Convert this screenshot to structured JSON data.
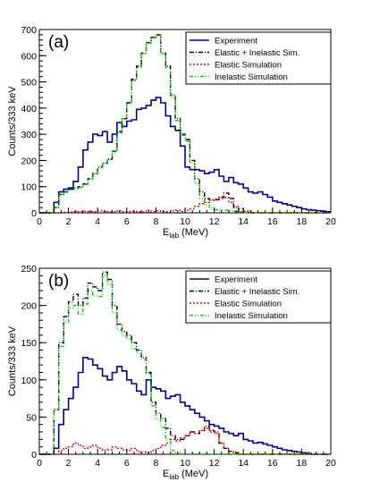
{
  "chart_data": [
    {
      "type": "line",
      "panel_label": "(a)",
      "xlabel": "E",
      "xlabel_sub": "lab",
      "xlabel_unit": " (MeV)",
      "ylabel": "Counts/333 keV",
      "xlim": [
        0,
        20
      ],
      "ylim": [
        0,
        700
      ],
      "xticks": [
        "0",
        "2",
        "4",
        "6",
        "8",
        "10",
        "12",
        "14",
        "16",
        "18",
        "20"
      ],
      "yticks": [
        "0",
        "100",
        "200",
        "300",
        "400",
        "500",
        "600",
        "700"
      ],
      "legend_position": "top-right",
      "bin_width": 0.3333,
      "series": [
        {
          "name": "Experiment",
          "color": "#000099",
          "style": "solid",
          "x_start": 0.0,
          "values": [
            0,
            0,
            0,
            40,
            80,
            90,
            95,
            120,
            175,
            240,
            270,
            300,
            295,
            310,
            270,
            300,
            345,
            330,
            350,
            355,
            395,
            400,
            410,
            430,
            440,
            420,
            370,
            330,
            315,
            255,
            175,
            165,
            165,
            160,
            150,
            155,
            165,
            140,
            120,
            135,
            115,
            110,
            95,
            80,
            75,
            80,
            70,
            60,
            45,
            40,
            35,
            30,
            25,
            20,
            15,
            12,
            10,
            8,
            6,
            4
          ]
        },
        {
          "name": "Elastic + Inelastic Sim.",
          "color": "#000000",
          "style": "dash-dot",
          "x_start": 0.0,
          "values": [
            0,
            0,
            0,
            20,
            70,
            80,
            90,
            95,
            100,
            110,
            130,
            150,
            175,
            190,
            205,
            235,
            310,
            360,
            420,
            510,
            560,
            610,
            650,
            670,
            680,
            610,
            560,
            450,
            360,
            300,
            280,
            200,
            130,
            80,
            55,
            50,
            50,
            60,
            75,
            55,
            20,
            5,
            2,
            0,
            0,
            0,
            0,
            0,
            0,
            0,
            0,
            0,
            0,
            0,
            0,
            0,
            0,
            0,
            0,
            0
          ]
        },
        {
          "name": "Elastic Simulation",
          "color": "#ee0000",
          "style": "dotted",
          "x_start": 0.0,
          "values": [
            0,
            0,
            0,
            0,
            0,
            2,
            3,
            5,
            5,
            6,
            5,
            4,
            8,
            5,
            4,
            3,
            8,
            4,
            5,
            6,
            4,
            3,
            10,
            5,
            8,
            5,
            4,
            8,
            10,
            5,
            10,
            15,
            25,
            35,
            40,
            48,
            52,
            55,
            58,
            40,
            25,
            15,
            8,
            5,
            2,
            0,
            0,
            0,
            0,
            0,
            0,
            0,
            0,
            0,
            0,
            0,
            0,
            0,
            0,
            0
          ]
        },
        {
          "name": "Inelastic Simulation",
          "color": "#00cc00",
          "style": "dash-dot-dot",
          "x_start": 0.0,
          "values": [
            0,
            0,
            0,
            20,
            70,
            78,
            88,
            92,
            97,
            108,
            128,
            148,
            172,
            188,
            203,
            233,
            305,
            357,
            418,
            505,
            556,
            606,
            648,
            668,
            675,
            606,
            555,
            445,
            352,
            296,
            273,
            190,
            112,
            55,
            30,
            18,
            12,
            10,
            10,
            8,
            5,
            3,
            1,
            0,
            0,
            0,
            0,
            0,
            0,
            0,
            0,
            0,
            0,
            0,
            0,
            0,
            0,
            0,
            0,
            0
          ]
        }
      ],
      "legend": [
        "Experiment",
        "Elastic + Inelastic Sim.",
        "Elastic Simulation",
        "Inelastic Simulation"
      ]
    },
    {
      "type": "line",
      "panel_label": "(b)",
      "xlabel": "E",
      "xlabel_sub": "lab",
      "xlabel_unit": " (MeV)",
      "ylabel": "Counts/333 keV",
      "xlim": [
        0,
        20
      ],
      "ylim": [
        0,
        250
      ],
      "xticks": [
        "0",
        "2",
        "4",
        "6",
        "8",
        "10",
        "12",
        "14",
        "16",
        "18",
        "20"
      ],
      "yticks": [
        "0",
        "50",
        "100",
        "150",
        "200",
        "250"
      ],
      "legend_position": "top-right",
      "bin_width": 0.3333,
      "series": [
        {
          "name": "Experiment",
          "color": "#000099",
          "style": "solid",
          "x_start": 0.0,
          "values": [
            0,
            0,
            0,
            8,
            40,
            60,
            75,
            90,
            110,
            130,
            128,
            120,
            115,
            105,
            100,
            110,
            118,
            112,
            100,
            95,
            85,
            80,
            100,
            90,
            88,
            85,
            75,
            78,
            80,
            70,
            65,
            60,
            55,
            50,
            45,
            40,
            38,
            35,
            30,
            28,
            25,
            28,
            20,
            18,
            15,
            16,
            14,
            12,
            10,
            8,
            6,
            5,
            4,
            3,
            2,
            1,
            0,
            0,
            0,
            0
          ]
        },
        {
          "name": "Elastic + Inelastic Sim.",
          "color": "#000000",
          "style": "dash-dot",
          "x_start": 0.0,
          "values": [
            0,
            0,
            0,
            60,
            150,
            185,
            205,
            215,
            200,
            210,
            230,
            225,
            220,
            245,
            235,
            200,
            175,
            165,
            160,
            150,
            140,
            130,
            110,
            70,
            55,
            48,
            35,
            25,
            20,
            20,
            25,
            30,
            28,
            32,
            38,
            32,
            30,
            15,
            8,
            4,
            2,
            0,
            0,
            0,
            0,
            0,
            0,
            0,
            0,
            0,
            0,
            0,
            0,
            0,
            0,
            0,
            0,
            0,
            0,
            0
          ]
        },
        {
          "name": "Elastic Simulation",
          "color": "#ee0000",
          "style": "dotted",
          "x_start": 0.0,
          "values": [
            0,
            0,
            0,
            0,
            5,
            8,
            10,
            15,
            12,
            8,
            10,
            12,
            8,
            5,
            6,
            10,
            8,
            6,
            5,
            8,
            4,
            3,
            2,
            5,
            8,
            12,
            15,
            20,
            18,
            22,
            25,
            30,
            28,
            32,
            35,
            30,
            28,
            15,
            8,
            4,
            2,
            0,
            0,
            0,
            0,
            0,
            0,
            0,
            0,
            0,
            0,
            0,
            0,
            0,
            0,
            0,
            0,
            0,
            0,
            0
          ]
        },
        {
          "name": "Inelastic Simulation",
          "color": "#00cc00",
          "style": "dash-dot-dot",
          "x_start": 0.0,
          "values": [
            0,
            0,
            0,
            60,
            145,
            178,
            197,
            200,
            188,
            202,
            220,
            213,
            212,
            240,
            229,
            190,
            167,
            159,
            155,
            142,
            136,
            127,
            108,
            65,
            47,
            36,
            20,
            5,
            2,
            0,
            0,
            0,
            0,
            0,
            0,
            0,
            0,
            0,
            0,
            0,
            0,
            0,
            0,
            0,
            0,
            0,
            0,
            0,
            0,
            0,
            0,
            0,
            0,
            0,
            0,
            0,
            0,
            0,
            0,
            0
          ]
        }
      ],
      "legend": [
        "Experiment",
        "Elastic + Inelastic Sim.",
        "Elastic Simulation",
        "Inelastic Simulation"
      ]
    }
  ]
}
